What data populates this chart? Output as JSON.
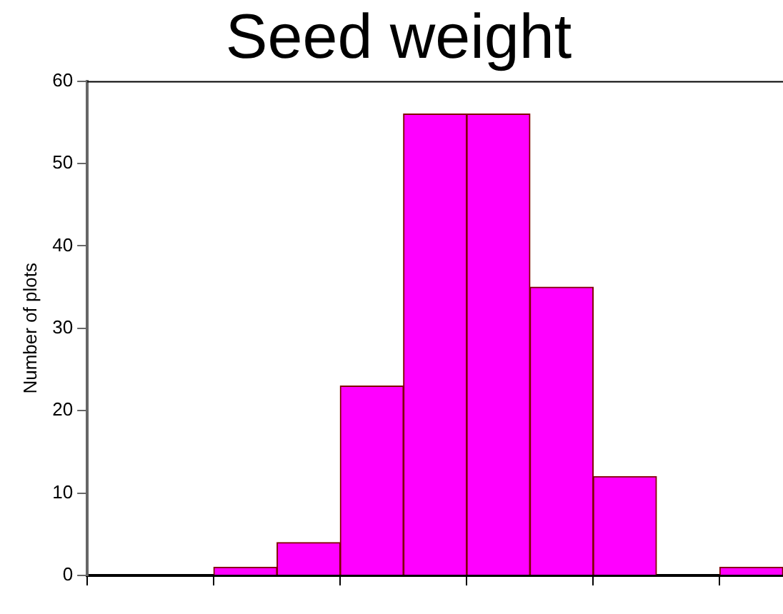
{
  "chart_data": {
    "type": "bar",
    "title": "Seed weight",
    "ylabel": "Number of plots",
    "categories": [
      null,
      null,
      null,
      null,
      null,
      null,
      null,
      null,
      null,
      null,
      null
    ],
    "values": [
      0,
      0,
      1,
      4,
      23,
      56,
      56,
      35,
      12,
      0,
      1
    ],
    "color": "#ff00ff",
    "ylim": [
      0,
      60
    ],
    "yticks": [
      0,
      10,
      20,
      30,
      40,
      50,
      60
    ],
    "grid": false,
    "legend": false
  }
}
